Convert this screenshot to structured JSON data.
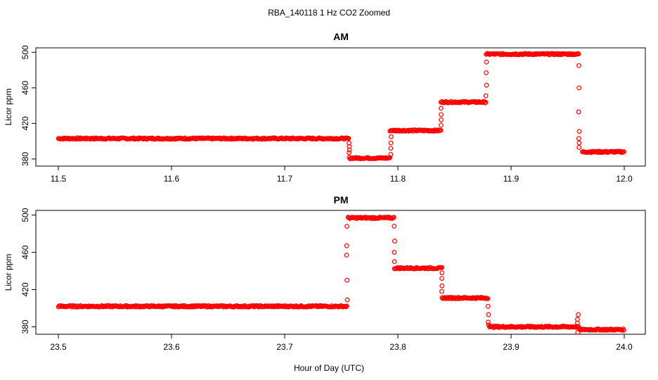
{
  "figure": {
    "title": "RBA_140118  1 Hz CO2 Zoomed",
    "xlabel": "Hour of Day (UTC)"
  },
  "chart_data": [
    {
      "type": "scatter",
      "title": "AM",
      "ylabel": "Licor ppm",
      "xlabel": "",
      "xlim": [
        11.5,
        12.0
      ],
      "ylim": [
        372,
        505
      ],
      "xticks": [
        "11.5",
        "11.6",
        "11.7",
        "11.8",
        "11.9",
        "12.0"
      ],
      "yticks": [
        "380",
        "420",
        "460",
        "500"
      ],
      "grid": false,
      "marker": "open-circle",
      "color": "#ff0000",
      "segments": [
        {
          "x": [
            11.5,
            11.757
          ],
          "y": 403
        },
        {
          "x": [
            11.757,
            11.793
          ],
          "y": 381
        },
        {
          "x": [
            11.793,
            11.838
          ],
          "y": 412
        },
        {
          "x": [
            11.838,
            11.878
          ],
          "y": 444
        },
        {
          "x": [
            11.878,
            11.96
          ],
          "y": 498
        },
        {
          "x": [
            11.963,
            12.0
          ],
          "y": 388
        }
      ],
      "transitions": [
        {
          "x": 11.757,
          "y": [
            387,
            390,
            394,
            398
          ]
        },
        {
          "x": 11.794,
          "y": [
            385,
            392,
            398,
            405
          ]
        },
        {
          "x": 11.838,
          "y": [
            418,
            424,
            430,
            437
          ]
        },
        {
          "x": 11.878,
          "y": [
            451,
            463,
            477,
            489
          ]
        },
        {
          "x": 11.96,
          "y": [
            485,
            460,
            433,
            411,
            403,
            398,
            393
          ]
        }
      ]
    },
    {
      "type": "scatter",
      "title": "PM",
      "ylabel": "Licor ppm",
      "xlabel": "",
      "xlim": [
        23.5,
        24.0
      ],
      "ylim": [
        372,
        505
      ],
      "xticks": [
        "23.5",
        "23.6",
        "23.7",
        "23.8",
        "23.9",
        "24.0"
      ],
      "yticks": [
        "380",
        "420",
        "460",
        "500"
      ],
      "grid": false,
      "marker": "open-circle",
      "color": "#ff0000",
      "segments": [
        {
          "x": [
            23.5,
            23.755
          ],
          "y": 402
        },
        {
          "x": [
            23.756,
            23.797
          ],
          "y": 497
        },
        {
          "x": [
            23.797,
            23.839
          ],
          "y": 443
        },
        {
          "x": [
            23.839,
            23.88
          ],
          "y": 411
        },
        {
          "x": [
            23.881,
            23.96
          ],
          "y": 380
        },
        {
          "x": [
            23.96,
            24.0
          ],
          "y": 377
        }
      ],
      "transitions": [
        {
          "x": 23.755,
          "y": [
            409,
            430,
            457,
            467,
            488
          ]
        },
        {
          "x": 23.797,
          "y": [
            488,
            472,
            460,
            450
          ]
        },
        {
          "x": 23.839,
          "y": [
            438,
            432,
            424,
            418
          ]
        },
        {
          "x": 23.88,
          "y": [
            402,
            393,
            385,
            382
          ]
        },
        {
          "x": 23.959,
          "y": [
            374,
            393,
            388,
            384
          ]
        }
      ]
    }
  ]
}
